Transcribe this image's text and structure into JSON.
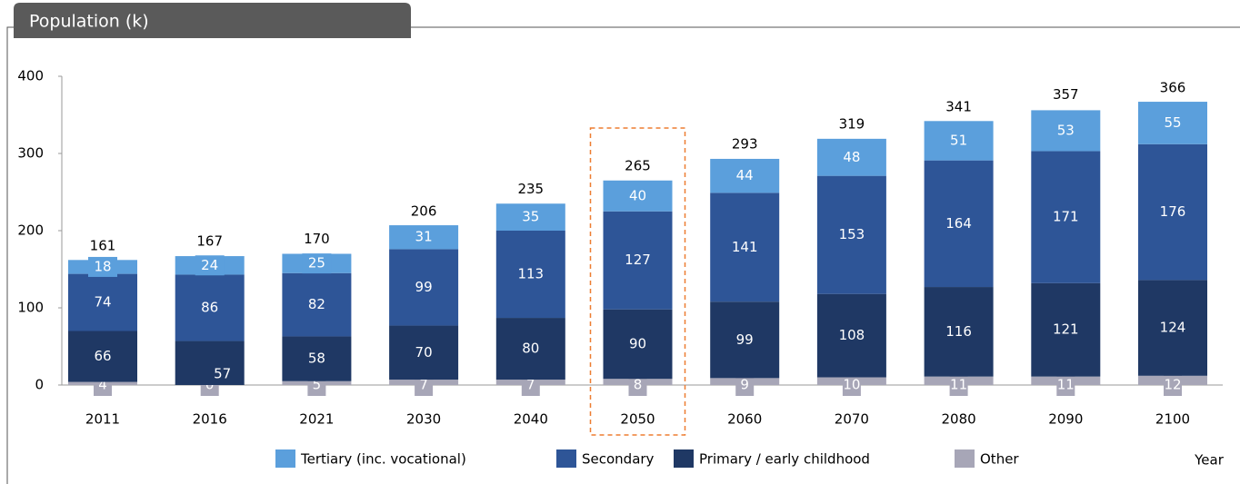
{
  "chart_data": {
    "type": "stacked_bar",
    "title": "Population (k)",
    "x_label": "Year",
    "categories": [
      "2011",
      "2016",
      "2021",
      "2030",
      "2040",
      "2050",
      "2060",
      "2070",
      "2080",
      "2090",
      "2100"
    ],
    "series": [
      {
        "name": "Other",
        "color": "#a7a6b7",
        "values": [
          4,
          0,
          5,
          7,
          7,
          8,
          9,
          10,
          11,
          11,
          12
        ]
      },
      {
        "name": "Primary / early childhood",
        "color": "#1f3864",
        "values": [
          66,
          57,
          58,
          70,
          80,
          90,
          99,
          108,
          116,
          121,
          124
        ]
      },
      {
        "name": "Secondary",
        "color": "#2e5597",
        "values": [
          74,
          86,
          82,
          99,
          113,
          127,
          141,
          153,
          164,
          171,
          176
        ]
      },
      {
        "name": "Tertiary (inc. vocational)",
        "color": "#5b9fdc",
        "values": [
          18,
          24,
          25,
          31,
          35,
          40,
          44,
          48,
          51,
          53,
          55
        ]
      }
    ],
    "totals": [
      161,
      167,
      170,
      206,
      235,
      265,
      293,
      319,
      341,
      357,
      366
    ],
    "highlight_category": "2050",
    "ylim": [
      0,
      400
    ],
    "yticks": [
      0,
      100,
      200,
      300,
      400
    ],
    "grid": false
  }
}
